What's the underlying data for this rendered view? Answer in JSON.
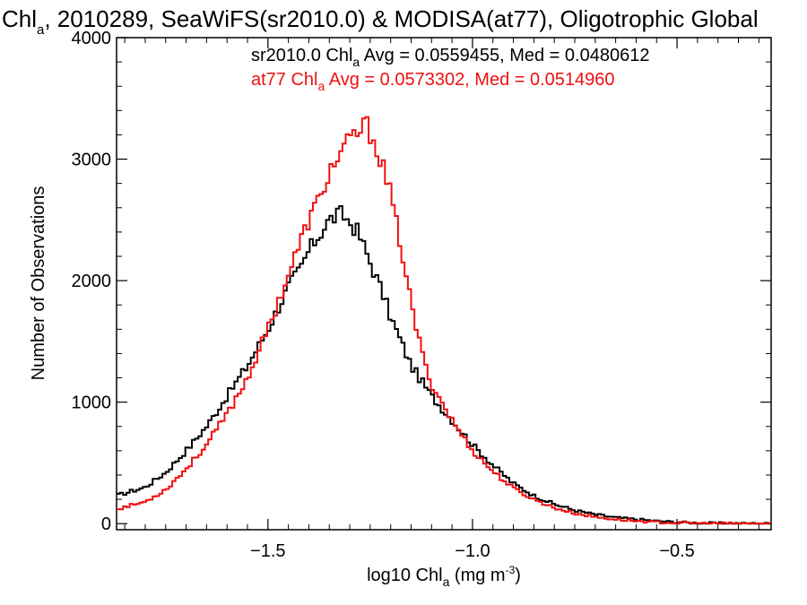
{
  "chart_data": {
    "type": "line",
    "step": true,
    "title": {
      "pre": "Chl",
      "sub": "a",
      "post": ", 2010289, SeaWiFS(sr2010.0) & MODISA(at77), Oligotrophic Global"
    },
    "xlabel": {
      "pre": "log10 Chl",
      "sub": "a",
      "post": " (mg m",
      "sup": "-3",
      "end": ")"
    },
    "ylabel": "Number of Observations",
    "xlim": [
      -1.87,
      -0.27
    ],
    "ylim": [
      -50,
      4000
    ],
    "xticks": [
      {
        "v": -1.5,
        "label": "−1.5"
      },
      {
        "v": -1.0,
        "label": "−1.0"
      },
      {
        "v": -0.5,
        "label": "−0.5"
      }
    ],
    "yticks": [
      {
        "v": 0,
        "label": "0"
      },
      {
        "v": 1000,
        "label": "1000"
      },
      {
        "v": 2000,
        "label": "2000"
      },
      {
        "v": 3000,
        "label": "3000"
      },
      {
        "v": 4000,
        "label": "4000"
      }
    ],
    "grid": false,
    "annotations": [
      {
        "pre": "sr2010.0 Chl",
        "sub": "a",
        "post": " Avg = 0.0559455, Med = 0.0480612",
        "color": "#000000"
      },
      {
        "pre": "at77 Chl",
        "sub": "a",
        "post": " Avg = 0.0573302, Med = 0.0514960",
        "color": "#ee1111"
      }
    ],
    "series": [
      {
        "color": "#000000",
        "x": [
          -1.87,
          -1.8,
          -1.75,
          -1.7,
          -1.65,
          -1.6,
          -1.55,
          -1.5,
          -1.45,
          -1.42,
          -1.4,
          -1.37,
          -1.35,
          -1.32,
          -1.3,
          -1.28,
          -1.25,
          -1.22,
          -1.2,
          -1.15,
          -1.1,
          -1.05,
          -1.0,
          -0.95,
          -0.9,
          -0.85,
          -0.8,
          -0.75,
          -0.7,
          -0.65,
          -0.6,
          -0.55,
          -0.5,
          -0.45,
          -0.4,
          -0.35,
          -0.3,
          -0.27
        ],
        "y": [
          230,
          300,
          420,
          600,
          800,
          1050,
          1300,
          1600,
          1950,
          2100,
          2250,
          2400,
          2500,
          2550,
          2480,
          2400,
          2150,
          1900,
          1700,
          1300,
          1050,
          850,
          650,
          480,
          330,
          230,
          160,
          110,
          75,
          50,
          35,
          22,
          12,
          6,
          3,
          2,
          1,
          0
        ]
      },
      {
        "color": "#ee1111",
        "x": [
          -1.87,
          -1.8,
          -1.75,
          -1.7,
          -1.65,
          -1.6,
          -1.55,
          -1.5,
          -1.45,
          -1.4,
          -1.37,
          -1.35,
          -1.32,
          -1.3,
          -1.28,
          -1.26,
          -1.24,
          -1.22,
          -1.2,
          -1.17,
          -1.15,
          -1.12,
          -1.1,
          -1.05,
          -1.0,
          -0.95,
          -0.9,
          -0.85,
          -0.8,
          -0.75,
          -0.7,
          -0.65,
          -0.6,
          -0.55,
          -0.5,
          -0.45,
          -0.4,
          -0.35,
          -0.3,
          -0.27
        ],
        "y": [
          120,
          180,
          280,
          450,
          650,
          900,
          1200,
          1600,
          2050,
          2500,
          2700,
          2900,
          3050,
          3150,
          3220,
          3280,
          3150,
          2950,
          2700,
          2200,
          1800,
          1350,
          1150,
          850,
          600,
          430,
          290,
          200,
          130,
          85,
          55,
          35,
          22,
          12,
          6,
          3,
          2,
          1,
          0,
          0
        ]
      }
    ]
  }
}
